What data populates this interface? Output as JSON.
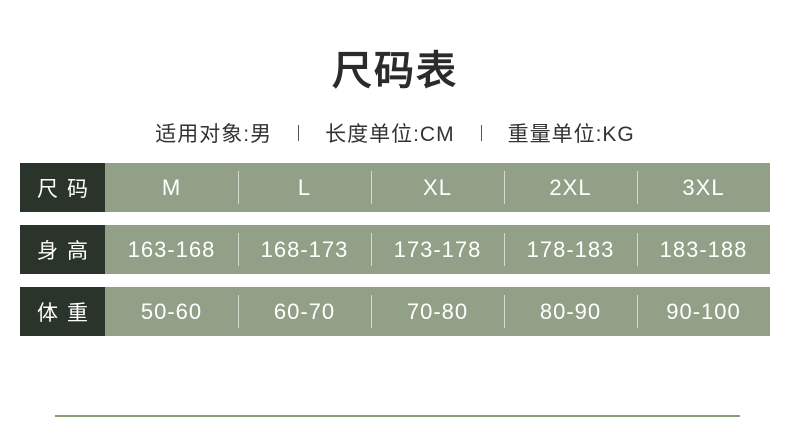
{
  "page": {
    "title": "尺码表",
    "meta_items": [
      {
        "label": "适用对象:男"
      },
      {
        "label": "长度单位:CM"
      },
      {
        "label": "重量单位:KG"
      }
    ]
  },
  "size_table": {
    "unit_note": "长度单位CM，重量单位KG",
    "rows": [
      {
        "label": "尺码",
        "values": [
          "M",
          "L",
          "XL",
          "2XL",
          "3XL"
        ]
      },
      {
        "label": "身高",
        "values": [
          "163-168",
          "168-173",
          "173-178",
          "178-183",
          "183-188"
        ]
      },
      {
        "label": "体重",
        "values": [
          "50-60",
          "60-70",
          "70-80",
          "80-90",
          "90-100"
        ]
      }
    ]
  },
  "colors": {
    "label_cell_bg": "#2b342b",
    "data_cell_bg": "#91a087",
    "cell_text": "#ffffff",
    "heading_text": "#2b2b2b",
    "cell_divider": "#d5d9cf",
    "bottom_rule": "#8a9b77"
  }
}
